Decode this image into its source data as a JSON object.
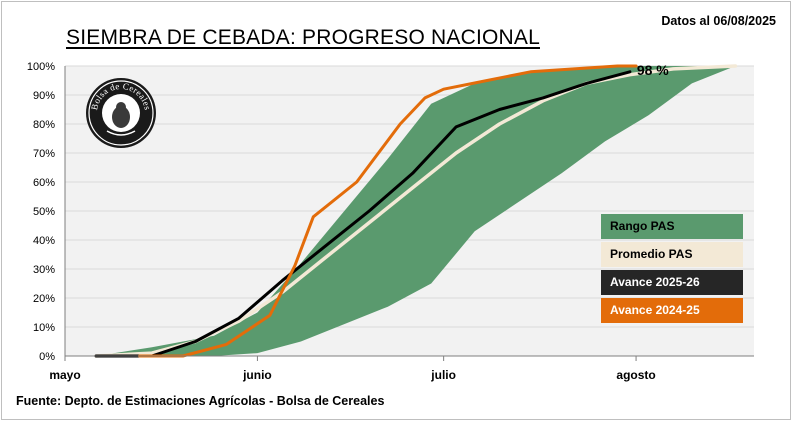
{
  "date_label": "Datos al 06/08/2025",
  "source_label": "Fuente: Depto. de Estimaciones Agrícolas - Bolsa de Cereales",
  "logo_text": "Bolsa de Cereales",
  "colors": {
    "range": "#5a9a6e",
    "average": "#f3e9d6",
    "current": "#000000",
    "previous": "#e36c0a",
    "plot_bg": "#f2f2f2",
    "grid": "#d9d9d9"
  },
  "chart_data": {
    "type": "area",
    "title": "SIEMBRA DE CEBADA: PROGRESO NACIONAL",
    "xlabel": "",
    "ylabel": "",
    "ylim": [
      0,
      100
    ],
    "x_axis": "date",
    "xlim": [
      "2025-05-01",
      "2025-08-20"
    ],
    "x_ticks": [
      {
        "date": "2025-05-01",
        "label": "mayo"
      },
      {
        "date": "2025-06-01",
        "label": "junio"
      },
      {
        "date": "2025-07-01",
        "label": "julio"
      },
      {
        "date": "2025-08-01",
        "label": "agosto"
      }
    ],
    "y_ticks": [
      "0%",
      "10%",
      "20%",
      "30%",
      "40%",
      "50%",
      "60%",
      "70%",
      "80%",
      "90%",
      "100%"
    ],
    "grid": true,
    "legend_position": "right",
    "end_label": "98 %",
    "range": {
      "name": "Rango PAS",
      "x": [
        "2025-05-06",
        "2025-05-15",
        "2025-05-25",
        "2025-06-01",
        "2025-06-08",
        "2025-06-15",
        "2025-06-22",
        "2025-06-29",
        "2025-07-06",
        "2025-07-13",
        "2025-07-20",
        "2025-07-27",
        "2025-08-03",
        "2025-08-10",
        "2025-08-17"
      ],
      "upper": [
        0,
        3,
        7,
        15,
        32,
        50,
        68,
        87,
        94,
        97,
        99,
        100,
        100,
        100,
        100
      ],
      "lower": [
        0,
        0,
        0,
        1,
        5,
        11,
        17,
        25,
        43,
        53,
        63,
        74,
        83,
        94,
        100
      ]
    },
    "series": [
      {
        "name": "Promedio PAS",
        "x": [
          "2025-05-06",
          "2025-05-15",
          "2025-05-22",
          "2025-05-29",
          "2025-06-05",
          "2025-06-12",
          "2025-06-19",
          "2025-06-26",
          "2025-07-03",
          "2025-07-10",
          "2025-07-17",
          "2025-07-24",
          "2025-07-31",
          "2025-08-07",
          "2025-08-17"
        ],
        "values": [
          0,
          1,
          5,
          12,
          22,
          34,
          46,
          58,
          70,
          80,
          88,
          94,
          97,
          99,
          100
        ]
      },
      {
        "name": "Avance 2025-26",
        "x": [
          "2025-05-06",
          "2025-05-15",
          "2025-05-22",
          "2025-05-29",
          "2025-06-05",
          "2025-06-12",
          "2025-06-19",
          "2025-06-26",
          "2025-07-03",
          "2025-07-10",
          "2025-07-17",
          "2025-07-24",
          "2025-07-31"
        ],
        "values": [
          0,
          0,
          5,
          13,
          26,
          38,
          50,
          63,
          79,
          85,
          89,
          94,
          98
        ]
      },
      {
        "name": "Avance 2024-25",
        "x": [
          "2025-05-13",
          "2025-05-20",
          "2025-05-27",
          "2025-06-03",
          "2025-06-07",
          "2025-06-10",
          "2025-06-17",
          "2025-06-24",
          "2025-06-28",
          "2025-07-01",
          "2025-07-08",
          "2025-07-15",
          "2025-07-22",
          "2025-07-29",
          "2025-08-01"
        ],
        "values": [
          0,
          0,
          4,
          14,
          31,
          48,
          60,
          80,
          89,
          92,
          95,
          98,
          99,
          100,
          100
        ]
      }
    ]
  }
}
